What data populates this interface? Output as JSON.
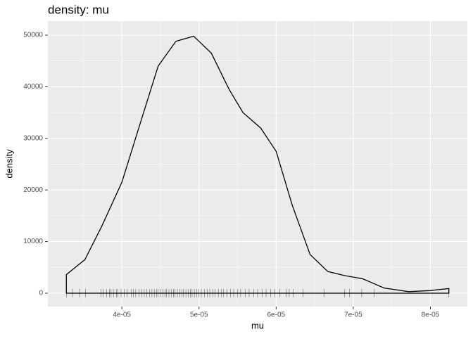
{
  "chart_data": {
    "type": "density",
    "title": "density: mu",
    "x_label": "mu",
    "y_label": "density",
    "x": [
      3.28e-05,
      3.52e-05,
      3.74e-05,
      4e-05,
      4.25e-05,
      4.47e-05,
      4.7e-05,
      4.93e-05,
      5.16e-05,
      5.39e-05,
      5.57e-05,
      5.8e-05,
      6e-05,
      6.21e-05,
      6.44e-05,
      6.67e-05,
      6.89e-05,
      7.12e-05,
      7.4e-05,
      7.72e-05,
      7.99e-05,
      8.24e-05
    ],
    "values": [
      3600,
      6500,
      13000,
      21500,
      33500,
      44000,
      48800,
      49800,
      46500,
      39500,
      35000,
      32000,
      27500,
      17000,
      7500,
      4200,
      3400,
      2800,
      1000,
      300,
      500,
      900
    ],
    "rug": [
      3.28e-05,
      3.36e-05,
      3.45e-05,
      3.53e-05,
      3.73e-05,
      3.76e-05,
      3.8e-05,
      3.84e-05,
      3.86e-05,
      3.89e-05,
      3.93e-05,
      3.95e-05,
      3.99e-05,
      4.03e-05,
      4.07e-05,
      4.12e-05,
      4.15e-05,
      4.18e-05,
      4.22e-05,
      4.26e-05,
      4.29e-05,
      4.32e-05,
      4.36e-05,
      4.39e-05,
      4.42e-05,
      4.45e-05,
      4.47e-05,
      4.5e-05,
      4.53e-05,
      4.56e-05,
      4.58e-05,
      4.61e-05,
      4.64e-05,
      4.67e-05,
      4.69e-05,
      4.72e-05,
      4.75e-05,
      4.78e-05,
      4.8e-05,
      4.83e-05,
      4.86e-05,
      4.89e-05,
      4.91e-05,
      4.94e-05,
      4.97e-05,
      5e-05,
      5.03e-05,
      5.07e-05,
      5.11e-05,
      5.14e-05,
      5.18e-05,
      5.21e-05,
      5.25e-05,
      5.29e-05,
      5.32e-05,
      5.36e-05,
      5.41e-05,
      5.45e-05,
      5.5e-05,
      5.54e-05,
      5.6e-05,
      5.65e-05,
      5.71e-05,
      5.76e-05,
      5.82e-05,
      5.87e-05,
      5.93e-05,
      5.98e-05,
      6.05e-05,
      6.13e-05,
      6.17e-05,
      6.22e-05,
      6.35e-05,
      6.62e-05,
      6.89e-05,
      6.95e-05,
      7.11e-05,
      7.27e-05,
      8.24e-05
    ],
    "xlim": [
      3.04e-05,
      8.48e-05
    ],
    "ylim": [
      -2590,
      52725
    ],
    "xticks": [
      {
        "value": 4e-05,
        "label": "4e-05"
      },
      {
        "value": 5e-05,
        "label": "5e-05"
      },
      {
        "value": 6e-05,
        "label": "6e-05"
      },
      {
        "value": 7e-05,
        "label": "7e-05"
      },
      {
        "value": 8e-05,
        "label": "8e-05"
      }
    ],
    "yticks": [
      0,
      10000,
      20000,
      30000,
      40000,
      50000
    ],
    "grid": true,
    "color": "#000000"
  }
}
